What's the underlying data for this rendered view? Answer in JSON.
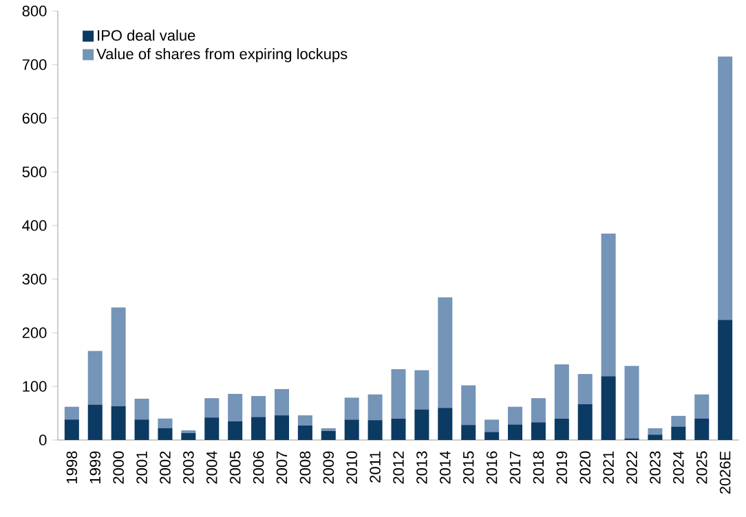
{
  "chart_data": {
    "type": "bar",
    "stacked": true,
    "legend": "top left",
    "grid": false,
    "categories": [
      "1998",
      "1999",
      "2000",
      "2001",
      "2002",
      "2003",
      "2004",
      "2005",
      "2006",
      "2007",
      "2008",
      "2009",
      "2010",
      "2011",
      "2012",
      "2013",
      "2014",
      "2015",
      "2016",
      "2017",
      "2018",
      "2019",
      "2020",
      "2021",
      "2022",
      "2023",
      "2024",
      "2025",
      "2026E"
    ],
    "series": [
      {
        "name": "IPO deal value",
        "color": "#0b3a63",
        "values": [
          38,
          66,
          63,
          38,
          22,
          13,
          42,
          35,
          43,
          46,
          27,
          17,
          38,
          37,
          40,
          57,
          60,
          28,
          15,
          29,
          33,
          40,
          67,
          119,
          3,
          10,
          25,
          40,
          224
        ]
      },
      {
        "name": "Value of shares from expiring lockups",
        "color": "#7494b8",
        "values": [
          24,
          100,
          184,
          39,
          18,
          5,
          36,
          51,
          39,
          49,
          19,
          5,
          41,
          48,
          92,
          73,
          206,
          74,
          23,
          33,
          45,
          101,
          56,
          266,
          135,
          12,
          20,
          45,
          491
        ]
      }
    ],
    "ylim": [
      0,
      800
    ],
    "yticks": [
      0,
      100,
      200,
      300,
      400,
      500,
      600,
      700,
      800
    ]
  }
}
